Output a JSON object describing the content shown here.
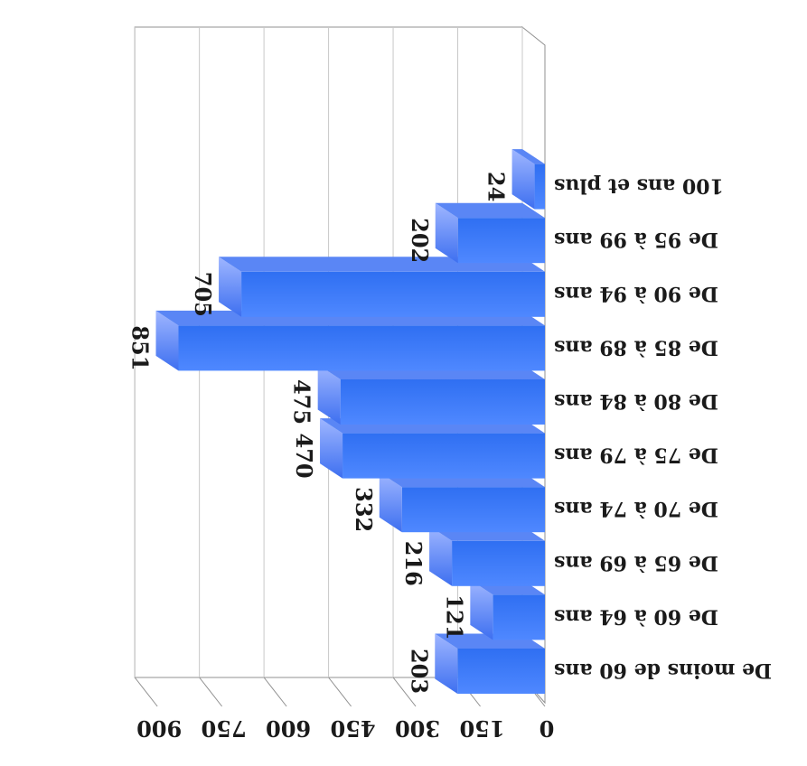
{
  "chart_data": {
    "type": "bar",
    "orientation": "rotated-180",
    "title": "",
    "xlabel": "",
    "ylabel": "",
    "categories": [
      "De moins de 60 ans",
      "De 60 à 64 ans",
      "De 65 à 69 ans",
      "De 70 à 74 ans",
      "De 75 à 79 ans",
      "De 80 à 84 ans",
      "De 85 à 89 ans",
      "De 90 à 94 ans",
      "De 95 à 99 ans",
      "100 ans et plus"
    ],
    "values": [
      203,
      121,
      216,
      332,
      470,
      475,
      851,
      705,
      202,
      24
    ],
    "value_labels": [
      "203",
      "121",
      "216",
      "332",
      "470",
      "475",
      "851",
      "705",
      "202",
      "24"
    ],
    "ylim": [
      0,
      900
    ],
    "yticks": [
      "0",
      "150",
      "300",
      "450",
      "600",
      "750",
      "900"
    ],
    "ytick_values": [
      0,
      150,
      300,
      450,
      600,
      750,
      900
    ],
    "grid": true,
    "legend": "none",
    "three_d": true,
    "colors": {
      "bar_front": "#2f6ff2",
      "bar_top": "#9fb6ff",
      "bar_side": "#5a86f5",
      "grid": "#c8c8c8",
      "axis": "#909090"
    }
  }
}
